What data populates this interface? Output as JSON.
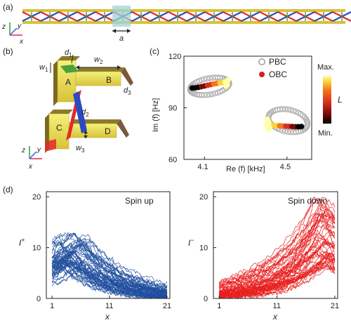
{
  "panels": {
    "a": {
      "label": "(a)",
      "lattice_constant_label": "a",
      "axes": {
        "z": "z",
        "y": "y",
        "x": "x"
      }
    },
    "b": {
      "label": "(b)",
      "labels": {
        "w1": "w",
        "w1_sub": "1",
        "d1": "d",
        "d1_sub": "1",
        "w2": "w",
        "w2_sub": "2",
        "d2": "d",
        "d2_sub": "2",
        "d3": "d",
        "d3_sub": "3",
        "w3": "w",
        "w3_sub": "3",
        "A": "A",
        "B": "B",
        "C": "C",
        "D": "D"
      },
      "axes": {
        "z": "z",
        "y": "y",
        "x": "x"
      }
    },
    "c": {
      "label": "(c)",
      "colorbar": {
        "max": "Max.",
        "min": "Min.",
        "var": "L"
      }
    }
  },
  "chart_data": [
    {
      "id": "c",
      "type": "scatter",
      "xlabel": "Re (f) [kHz]",
      "ylabel": "Im (f) [Hz]",
      "xticks": [
        "4.1",
        "4.5"
      ],
      "yticks": [
        "60",
        "90",
        "120"
      ],
      "xlim": [
        4.0,
        4.62
      ],
      "ylim": [
        60,
        120
      ],
      "legend": {
        "placement": "top-right",
        "entries": [
          "PBC",
          "OBC"
        ]
      },
      "series": [
        {
          "name": "PBC",
          "style": "open-circle",
          "color": "#aaaaaa",
          "loops": [
            {
              "cx": 4.125,
              "cy": 102.5,
              "rx": 0.095,
              "ry": 4.8,
              "tilt": 0.9
            },
            {
              "cx": 4.505,
              "cy": 82.5,
              "rx": 0.095,
              "ry": 6.5,
              "tilt": -0.9
            }
          ]
        },
        {
          "name": "OBC",
          "style": "filled-circle",
          "color": "#dd2222",
          "points": [
            [
              4.04,
              101.5
            ],
            [
              4.055,
              101.6
            ],
            [
              4.07,
              101.9
            ],
            [
              4.085,
              102.3
            ],
            [
              4.1,
              102.7
            ],
            [
              4.115,
              103.1
            ],
            [
              4.13,
              103.5
            ],
            [
              4.145,
              103.9
            ],
            [
              4.16,
              104.2
            ],
            [
              4.175,
              104.5
            ],
            [
              4.19,
              104.7
            ],
            [
              4.2,
              105.0
            ],
            [
              4.21,
              105.4
            ],
            [
              4.215,
              106.2
            ],
            [
              4.205,
              102.6
            ],
            [
              4.21,
              103.4
            ],
            [
              4.4,
              80.2
            ],
            [
              4.41,
              80.4
            ],
            [
              4.42,
              80.0
            ],
            [
              4.435,
              79.8
            ],
            [
              4.45,
              79.6
            ],
            [
              4.465,
              79.5
            ],
            [
              4.48,
              79.4
            ],
            [
              4.495,
              79.3
            ],
            [
              4.51,
              79.2
            ],
            [
              4.525,
              79.1
            ],
            [
              4.54,
              79.0
            ],
            [
              4.555,
              79.0
            ],
            [
              4.57,
              79.1
            ],
            [
              4.405,
              83.3
            ],
            [
              4.41,
              81.9
            ],
            [
              4.415,
              78.7
            ],
            [
              4.41,
              77.5
            ]
          ]
        }
      ],
      "colors": {
        "colormap": [
          "#000000",
          "#7a0b0b",
          "#d7301f",
          "#f07818",
          "#fdd23a",
          "#ffffa6"
        ]
      }
    },
    {
      "id": "d-up",
      "panel_label": "(d)",
      "type": "line",
      "title": "Spin up",
      "xlabel": "x",
      "ylabel": "I",
      "ylabel_sub": "+",
      "xticks": [
        "1",
        "11",
        "21"
      ],
      "yticks": [
        "0",
        "10",
        "20"
      ],
      "xlim": [
        0,
        21.5
      ],
      "ylim": [
        0,
        21
      ],
      "color": "#1f4e9e",
      "n_curves": 60,
      "peak_x_range": [
        2,
        8
      ],
      "peak_y_range": [
        6,
        13
      ],
      "decay_to_x": 21
    },
    {
      "id": "d-down",
      "type": "line",
      "title": "Spin down",
      "xlabel": "x",
      "ylabel": "I",
      "ylabel_sub": "−",
      "xticks": [
        "1",
        "11",
        "21"
      ],
      "yticks": [
        "0",
        "10",
        "20"
      ],
      "xlim": [
        0,
        21.5
      ],
      "ylim": [
        0,
        21
      ],
      "color": "#e81e1e",
      "n_curves": 60,
      "peak_x_range": [
        17,
        20.5
      ],
      "peak_y_range": [
        6,
        20
      ],
      "rise_from_x": 1
    }
  ]
}
